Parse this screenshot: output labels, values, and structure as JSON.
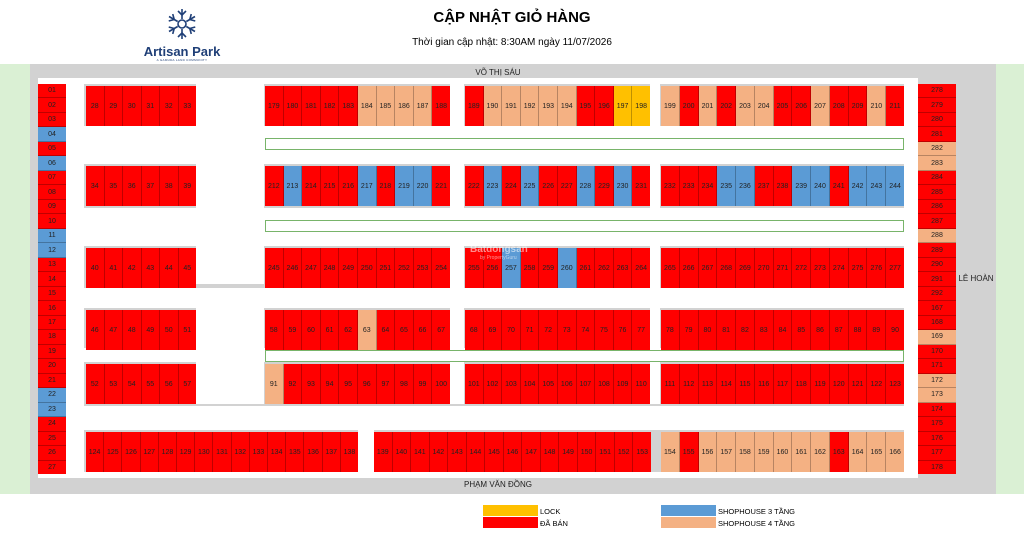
{
  "brand": {
    "name": "Artisan Park",
    "tagline": "A GAMUDA LAND COMMUNITY"
  },
  "title": "CẬP NHẬT GIỎ HÀNG",
  "subtitle": "Thời gian cập nhật: 8:30AM ngày 11/07/2026",
  "roads": {
    "top": "VÕ THỊ SÁU",
    "bottom": "PHẠM VĂN ĐỒNG",
    "right": "LÊ HOÀN"
  },
  "watermark": {
    "brand": "Batdongsan",
    "sub": "by PropertyGuru"
  },
  "status_colors": {
    "sold": "#ff0000",
    "lock": "#ffc000",
    "sh3": "#5b9bd5",
    "sh4": "#f4b183"
  },
  "legend": [
    {
      "key": "lock",
      "label": "LOCK"
    },
    {
      "key": "sold",
      "label": "ĐÃ BÁN"
    },
    {
      "key": "sh3",
      "label": "SHOPHOUSE 3 TẦNG"
    },
    {
      "key": "sh4",
      "label": "SHOPHOUSE 4 TẦNG"
    }
  ],
  "left_column": [
    {
      "n": "01",
      "s": "sold"
    },
    {
      "n": "02",
      "s": "sold"
    },
    {
      "n": "03",
      "s": "sold"
    },
    {
      "n": "04",
      "s": "sh3"
    },
    {
      "n": "05",
      "s": "sold"
    },
    {
      "n": "06",
      "s": "sh3"
    },
    {
      "n": "07",
      "s": "sold"
    },
    {
      "n": "08",
      "s": "sold"
    },
    {
      "n": "09",
      "s": "sold"
    },
    {
      "n": "10",
      "s": "sold"
    },
    {
      "n": "11",
      "s": "sh3"
    },
    {
      "n": "12",
      "s": "sh3"
    },
    {
      "n": "13",
      "s": "sold"
    },
    {
      "n": "14",
      "s": "sold"
    },
    {
      "n": "15",
      "s": "sold"
    },
    {
      "n": "16",
      "s": "sold"
    },
    {
      "n": "17",
      "s": "sold"
    },
    {
      "n": "18",
      "s": "sold"
    },
    {
      "n": "19",
      "s": "sold"
    },
    {
      "n": "20",
      "s": "sold"
    },
    {
      "n": "21",
      "s": "sold"
    },
    {
      "n": "22",
      "s": "sh3"
    },
    {
      "n": "23",
      "s": "sh3"
    },
    {
      "n": "24",
      "s": "sold"
    },
    {
      "n": "25",
      "s": "sold"
    },
    {
      "n": "26",
      "s": "sold"
    },
    {
      "n": "27",
      "s": "sold"
    }
  ],
  "right_column": [
    {
      "n": "278",
      "s": "sold"
    },
    {
      "n": "279",
      "s": "sold"
    },
    {
      "n": "280",
      "s": "sold"
    },
    {
      "n": "281",
      "s": "sold"
    },
    {
      "n": "282",
      "s": "sh4"
    },
    {
      "n": "283",
      "s": "sh4"
    },
    {
      "n": "284",
      "s": "sold"
    },
    {
      "n": "285",
      "s": "sold"
    },
    {
      "n": "286",
      "s": "sold"
    },
    {
      "n": "287",
      "s": "sold"
    },
    {
      "n": "288",
      "s": "sh4"
    },
    {
      "n": "289",
      "s": "sold"
    },
    {
      "n": "290",
      "s": "sold"
    },
    {
      "n": "291",
      "s": "sold"
    },
    {
      "n": "292",
      "s": "sold"
    },
    {
      "n": "167",
      "s": "sold"
    },
    {
      "n": "168",
      "s": "sold"
    },
    {
      "n": "169",
      "s": "sh4"
    },
    {
      "n": "170",
      "s": "sold"
    },
    {
      "n": "171",
      "s": "sold"
    },
    {
      "n": "172",
      "s": "sh4"
    },
    {
      "n": "173",
      "s": "sh4"
    },
    {
      "n": "174",
      "s": "sold"
    },
    {
      "n": "175",
      "s": "sold"
    },
    {
      "n": "176",
      "s": "sold"
    },
    {
      "n": "177",
      "s": "sold"
    },
    {
      "n": "178",
      "s": "sold"
    }
  ],
  "rows": {
    "r1a": [
      {
        "n": "28",
        "s": "sold"
      },
      {
        "n": "29",
        "s": "sold"
      },
      {
        "n": "30",
        "s": "sold"
      },
      {
        "n": "31",
        "s": "sold"
      },
      {
        "n": "32",
        "s": "sold"
      },
      {
        "n": "33",
        "s": "sold"
      }
    ],
    "r1b": [
      {
        "n": "179",
        "s": "sold"
      },
      {
        "n": "180",
        "s": "sold"
      },
      {
        "n": "181",
        "s": "sold"
      },
      {
        "n": "182",
        "s": "sold"
      },
      {
        "n": "183",
        "s": "sold"
      },
      {
        "n": "184",
        "s": "sh4"
      },
      {
        "n": "185",
        "s": "sh4"
      },
      {
        "n": "186",
        "s": "sh4"
      },
      {
        "n": "187",
        "s": "sh4"
      },
      {
        "n": "188",
        "s": "sold"
      }
    ],
    "r1c": [
      {
        "n": "189",
        "s": "sold"
      },
      {
        "n": "190",
        "s": "sh4"
      },
      {
        "n": "191",
        "s": "sh4"
      },
      {
        "n": "192",
        "s": "sh4"
      },
      {
        "n": "193",
        "s": "sh4"
      },
      {
        "n": "194",
        "s": "sh4"
      },
      {
        "n": "195",
        "s": "sold"
      },
      {
        "n": "196",
        "s": "sold"
      },
      {
        "n": "197",
        "s": "lock"
      },
      {
        "n": "198",
        "s": "lock"
      }
    ],
    "r1d": [
      {
        "n": "199",
        "s": "sh4"
      },
      {
        "n": "200",
        "s": "sold"
      },
      {
        "n": "201",
        "s": "sh4"
      },
      {
        "n": "202",
        "s": "sold"
      },
      {
        "n": "203",
        "s": "sh4"
      },
      {
        "n": "204",
        "s": "sh4"
      },
      {
        "n": "205",
        "s": "sold"
      },
      {
        "n": "206",
        "s": "sold"
      },
      {
        "n": "207",
        "s": "sh4"
      },
      {
        "n": "208",
        "s": "sold"
      },
      {
        "n": "209",
        "s": "sold"
      },
      {
        "n": "210",
        "s": "sh4"
      },
      {
        "n": "211",
        "s": "sold"
      }
    ],
    "r2a": [
      {
        "n": "34",
        "s": "sold"
      },
      {
        "n": "35",
        "s": "sold"
      },
      {
        "n": "36",
        "s": "sold"
      },
      {
        "n": "37",
        "s": "sold"
      },
      {
        "n": "38",
        "s": "sold"
      },
      {
        "n": "39",
        "s": "sold"
      }
    ],
    "r2b": [
      {
        "n": "212",
        "s": "sold"
      },
      {
        "n": "213",
        "s": "sh3"
      },
      {
        "n": "214",
        "s": "sold"
      },
      {
        "n": "215",
        "s": "sold"
      },
      {
        "n": "216",
        "s": "sold"
      },
      {
        "n": "217",
        "s": "sh3"
      },
      {
        "n": "218",
        "s": "sold"
      },
      {
        "n": "219",
        "s": "sh3"
      },
      {
        "n": "220",
        "s": "sh3"
      },
      {
        "n": "221",
        "s": "sold"
      }
    ],
    "r2c": [
      {
        "n": "222",
        "s": "sold"
      },
      {
        "n": "223",
        "s": "sh3"
      },
      {
        "n": "224",
        "s": "sold"
      },
      {
        "n": "225",
        "s": "sh3"
      },
      {
        "n": "226",
        "s": "sold"
      },
      {
        "n": "227",
        "s": "sold"
      },
      {
        "n": "228",
        "s": "sh3"
      },
      {
        "n": "229",
        "s": "sold"
      },
      {
        "n": "230",
        "s": "sh3"
      },
      {
        "n": "231",
        "s": "sold"
      }
    ],
    "r2d": [
      {
        "n": "232",
        "s": "sold"
      },
      {
        "n": "233",
        "s": "sold"
      },
      {
        "n": "234",
        "s": "sold"
      },
      {
        "n": "235",
        "s": "sh3"
      },
      {
        "n": "236",
        "s": "sh3"
      },
      {
        "n": "237",
        "s": "sold"
      },
      {
        "n": "238",
        "s": "sold"
      },
      {
        "n": "239",
        "s": "sh3"
      },
      {
        "n": "240",
        "s": "sh3"
      },
      {
        "n": "241",
        "s": "sold"
      },
      {
        "n": "242",
        "s": "sh3"
      },
      {
        "n": "243",
        "s": "sh3"
      },
      {
        "n": "244",
        "s": "sh3"
      }
    ],
    "r3a": [
      {
        "n": "40",
        "s": "sold"
      },
      {
        "n": "41",
        "s": "sold"
      },
      {
        "n": "42",
        "s": "sold"
      },
      {
        "n": "43",
        "s": "sold"
      },
      {
        "n": "44",
        "s": "sold"
      },
      {
        "n": "45",
        "s": "sold"
      }
    ],
    "r3b": [
      {
        "n": "245",
        "s": "sold"
      },
      {
        "n": "246",
        "s": "sold"
      },
      {
        "n": "247",
        "s": "sold"
      },
      {
        "n": "248",
        "s": "sold"
      },
      {
        "n": "249",
        "s": "sold"
      },
      {
        "n": "250",
        "s": "sold"
      },
      {
        "n": "251",
        "s": "sold"
      },
      {
        "n": "252",
        "s": "sold"
      },
      {
        "n": "253",
        "s": "sold"
      },
      {
        "n": "254",
        "s": "sold"
      }
    ],
    "r3c": [
      {
        "n": "255",
        "s": "sold"
      },
      {
        "n": "256",
        "s": "sold"
      },
      {
        "n": "257",
        "s": "sh3"
      },
      {
        "n": "258",
        "s": "sold"
      },
      {
        "n": "259",
        "s": "sold"
      },
      {
        "n": "260",
        "s": "sh3"
      },
      {
        "n": "261",
        "s": "sold"
      },
      {
        "n": "262",
        "s": "sold"
      },
      {
        "n": "263",
        "s": "sold"
      },
      {
        "n": "264",
        "s": "sold"
      }
    ],
    "r3d": [
      {
        "n": "265",
        "s": "sold"
      },
      {
        "n": "266",
        "s": "sold"
      },
      {
        "n": "267",
        "s": "sold"
      },
      {
        "n": "268",
        "s": "sold"
      },
      {
        "n": "269",
        "s": "sold"
      },
      {
        "n": "270",
        "s": "sold"
      },
      {
        "n": "271",
        "s": "sold"
      },
      {
        "n": "272",
        "s": "sold"
      },
      {
        "n": "273",
        "s": "sold"
      },
      {
        "n": "274",
        "s": "sold"
      },
      {
        "n": "275",
        "s": "sold"
      },
      {
        "n": "276",
        "s": "sold"
      },
      {
        "n": "277",
        "s": "sold"
      }
    ],
    "r4a": [
      {
        "n": "46",
        "s": "sold"
      },
      {
        "n": "47",
        "s": "sold"
      },
      {
        "n": "48",
        "s": "sold"
      },
      {
        "n": "49",
        "s": "sold"
      },
      {
        "n": "50",
        "s": "sold"
      },
      {
        "n": "51",
        "s": "sold"
      }
    ],
    "r4b": [
      {
        "n": "58",
        "s": "sold"
      },
      {
        "n": "59",
        "s": "sold"
      },
      {
        "n": "60",
        "s": "sold"
      },
      {
        "n": "61",
        "s": "sold"
      },
      {
        "n": "62",
        "s": "sold"
      },
      {
        "n": "63",
        "s": "sh4"
      },
      {
        "n": "64",
        "s": "sold"
      },
      {
        "n": "65",
        "s": "sold"
      },
      {
        "n": "66",
        "s": "sold"
      },
      {
        "n": "67",
        "s": "sold"
      }
    ],
    "r4c": [
      {
        "n": "68",
        "s": "sold"
      },
      {
        "n": "69",
        "s": "sold"
      },
      {
        "n": "70",
        "s": "sold"
      },
      {
        "n": "71",
        "s": "sold"
      },
      {
        "n": "72",
        "s": "sold"
      },
      {
        "n": "73",
        "s": "sold"
      },
      {
        "n": "74",
        "s": "sold"
      },
      {
        "n": "75",
        "s": "sold"
      },
      {
        "n": "76",
        "s": "sold"
      },
      {
        "n": "77",
        "s": "sold"
      }
    ],
    "r4d": [
      {
        "n": "78",
        "s": "sold"
      },
      {
        "n": "79",
        "s": "sold"
      },
      {
        "n": "80",
        "s": "sold"
      },
      {
        "n": "81",
        "s": "sold"
      },
      {
        "n": "82",
        "s": "sold"
      },
      {
        "n": "83",
        "s": "sold"
      },
      {
        "n": "84",
        "s": "sold"
      },
      {
        "n": "85",
        "s": "sold"
      },
      {
        "n": "86",
        "s": "sold"
      },
      {
        "n": "87",
        "s": "sold"
      },
      {
        "n": "88",
        "s": "sold"
      },
      {
        "n": "89",
        "s": "sold"
      },
      {
        "n": "90",
        "s": "sold"
      }
    ],
    "r5a": [
      {
        "n": "52",
        "s": "sold"
      },
      {
        "n": "53",
        "s": "sold"
      },
      {
        "n": "54",
        "s": "sold"
      },
      {
        "n": "55",
        "s": "sold"
      },
      {
        "n": "56",
        "s": "sold"
      },
      {
        "n": "57",
        "s": "sold"
      }
    ],
    "r5b": [
      {
        "n": "91",
        "s": "sh4"
      },
      {
        "n": "92",
        "s": "sold"
      },
      {
        "n": "93",
        "s": "sold"
      },
      {
        "n": "94",
        "s": "sold"
      },
      {
        "n": "95",
        "s": "sold"
      },
      {
        "n": "96",
        "s": "sold"
      },
      {
        "n": "97",
        "s": "sold"
      },
      {
        "n": "98",
        "s": "sold"
      },
      {
        "n": "99",
        "s": "sold"
      },
      {
        "n": "100",
        "s": "sold"
      }
    ],
    "r5c": [
      {
        "n": "101",
        "s": "sold"
      },
      {
        "n": "102",
        "s": "sold"
      },
      {
        "n": "103",
        "s": "sold"
      },
      {
        "n": "104",
        "s": "sold"
      },
      {
        "n": "105",
        "s": "sold"
      },
      {
        "n": "106",
        "s": "sold"
      },
      {
        "n": "107",
        "s": "sold"
      },
      {
        "n": "108",
        "s": "sold"
      },
      {
        "n": "109",
        "s": "sold"
      },
      {
        "n": "110",
        "s": "sold"
      }
    ],
    "r5d": [
      {
        "n": "111",
        "s": "sold"
      },
      {
        "n": "112",
        "s": "sold"
      },
      {
        "n": "113",
        "s": "sold"
      },
      {
        "n": "114",
        "s": "sold"
      },
      {
        "n": "115",
        "s": "sold"
      },
      {
        "n": "116",
        "s": "sold"
      },
      {
        "n": "117",
        "s": "sold"
      },
      {
        "n": "118",
        "s": "sold"
      },
      {
        "n": "119",
        "s": "sold"
      },
      {
        "n": "120",
        "s": "sold"
      },
      {
        "n": "121",
        "s": "sold"
      },
      {
        "n": "122",
        "s": "sold"
      },
      {
        "n": "123",
        "s": "sold"
      }
    ],
    "r6a": [
      {
        "n": "124",
        "s": "sold"
      },
      {
        "n": "125",
        "s": "sold"
      },
      {
        "n": "126",
        "s": "sold"
      },
      {
        "n": "127",
        "s": "sold"
      },
      {
        "n": "128",
        "s": "sold"
      },
      {
        "n": "129",
        "s": "sold"
      },
      {
        "n": "130",
        "s": "sold"
      },
      {
        "n": "131",
        "s": "sold"
      },
      {
        "n": "132",
        "s": "sold"
      },
      {
        "n": "133",
        "s": "sold"
      },
      {
        "n": "134",
        "s": "sold"
      },
      {
        "n": "135",
        "s": "sold"
      },
      {
        "n": "136",
        "s": "sold"
      },
      {
        "n": "137",
        "s": "sold"
      },
      {
        "n": "138",
        "s": "sold"
      }
    ],
    "r6b": [
      {
        "n": "139",
        "s": "sold"
      },
      {
        "n": "140",
        "s": "sold"
      },
      {
        "n": "141",
        "s": "sold"
      },
      {
        "n": "142",
        "s": "sold"
      },
      {
        "n": "143",
        "s": "sold"
      },
      {
        "n": "144",
        "s": "sold"
      },
      {
        "n": "145",
        "s": "sold"
      },
      {
        "n": "146",
        "s": "sold"
      },
      {
        "n": "147",
        "s": "sold"
      },
      {
        "n": "148",
        "s": "sold"
      },
      {
        "n": "149",
        "s": "sold"
      },
      {
        "n": "150",
        "s": "sold"
      },
      {
        "n": "151",
        "s": "sold"
      },
      {
        "n": "152",
        "s": "sold"
      },
      {
        "n": "153",
        "s": "sold"
      }
    ],
    "r6c": [
      {
        "n": "154",
        "s": "sh4"
      },
      {
        "n": "155",
        "s": "sold"
      },
      {
        "n": "156",
        "s": "sh4"
      },
      {
        "n": "157",
        "s": "sh4"
      },
      {
        "n": "158",
        "s": "sh4"
      },
      {
        "n": "159",
        "s": "sh4"
      },
      {
        "n": "160",
        "s": "sh4"
      },
      {
        "n": "161",
        "s": "sh4"
      },
      {
        "n": "162",
        "s": "sh4"
      },
      {
        "n": "163",
        "s": "sold"
      },
      {
        "n": "164",
        "s": "sh4"
      },
      {
        "n": "165",
        "s": "sh4"
      },
      {
        "n": "166",
        "s": "sh4"
      }
    ]
  }
}
